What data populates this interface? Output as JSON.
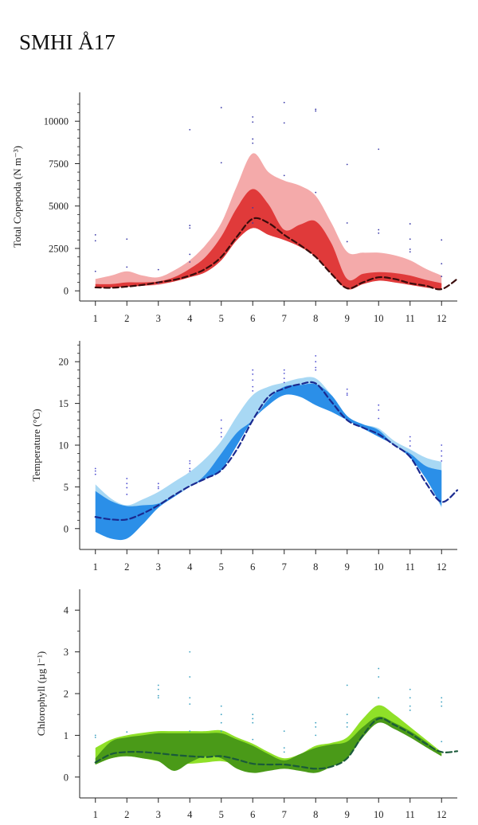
{
  "title": "SMHI Å17",
  "chart_data": [
    {
      "type": "area",
      "id": "copepoda",
      "ylabel": "Total Copepoda (N m⁻³)",
      "xlim": [
        0.5,
        12.5
      ],
      "ylim": [
        -600,
        11700
      ],
      "yticks": [
        0,
        2500,
        5000,
        7500,
        10000
      ],
      "yminor": [
        500,
        1000,
        1500,
        2000,
        3000,
        3500,
        4000,
        4500,
        5500,
        6000,
        6500,
        7000,
        8000,
        8500,
        9000,
        9500,
        10500,
        11000
      ],
      "xticks": [
        1,
        2,
        3,
        4,
        5,
        6,
        7,
        8,
        9,
        10,
        11,
        12
      ],
      "colors": {
        "outer": "#f4aaaa",
        "inner": "#e03a3a",
        "line": "#3a0c0c",
        "dots": "#3a3aa8"
      },
      "x": [
        1,
        1.5,
        2,
        2.5,
        3,
        3.5,
        4,
        4.5,
        5,
        5.5,
        6,
        6.5,
        7,
        7.5,
        8,
        8.5,
        9,
        9.5,
        10,
        10.5,
        11,
        11.5,
        12
      ],
      "outer_upper": [
        700,
        900,
        1150,
        900,
        800,
        1200,
        1800,
        2700,
        4000,
        6200,
        8100,
        7000,
        6500,
        6200,
        5600,
        4000,
        2300,
        2250,
        2250,
        2100,
        1800,
        1300,
        900
      ],
      "outer_lower": [
        150,
        200,
        250,
        300,
        350,
        550,
        800,
        1100,
        1800,
        3000,
        3700,
        3300,
        3000,
        2600,
        2000,
        1000,
        100,
        400,
        600,
        500,
        350,
        200,
        100
      ],
      "inner_upper": [
        400,
        400,
        500,
        500,
        550,
        800,
        1300,
        2000,
        3200,
        4900,
        6000,
        5100,
        3600,
        3900,
        4100,
        2800,
        700,
        1000,
        1100,
        1050,
        900,
        650,
        450
      ],
      "inner_lower": [
        200,
        200,
        250,
        300,
        400,
        550,
        800,
        1100,
        1800,
        3000,
        3700,
        3300,
        3000,
        2600,
        2000,
        1000,
        100,
        400,
        600,
        500,
        350,
        200,
        100
      ],
      "median_x": [
        1,
        1.5,
        2,
        2.5,
        3,
        3.5,
        4,
        4.5,
        5,
        5.5,
        6,
        6.5,
        7,
        7.5,
        8,
        8.5,
        9,
        9.5,
        10,
        10.5,
        11,
        11.5,
        12,
        12.5
      ],
      "median_y": [
        200,
        180,
        250,
        350,
        500,
        650,
        900,
        1300,
        2000,
        3200,
        4250,
        4000,
        3300,
        2700,
        2000,
        1000,
        150,
        500,
        800,
        700,
        450,
        300,
        100,
        700
      ],
      "obs": [
        [
          1,
          3300
        ],
        [
          1,
          2950
        ],
        [
          1,
          1150
        ],
        [
          2,
          3050
        ],
        [
          2,
          1400
        ],
        [
          3,
          1250
        ],
        [
          3,
          450
        ],
        [
          4,
          9500
        ],
        [
          4,
          3850
        ],
        [
          4,
          3700
        ],
        [
          4,
          2150
        ],
        [
          4,
          1700
        ],
        [
          5,
          10800
        ],
        [
          5,
          7550
        ],
        [
          6,
          10250
        ],
        [
          6,
          9950
        ],
        [
          6,
          8950
        ],
        [
          6,
          8700
        ],
        [
          6,
          4900
        ],
        [
          6,
          4000
        ],
        [
          7,
          11100
        ],
        [
          7,
          9900
        ],
        [
          7,
          6800
        ],
        [
          8,
          10700
        ],
        [
          8,
          10600
        ],
        [
          8,
          5800
        ],
        [
          9,
          7450
        ],
        [
          9,
          4000
        ],
        [
          9,
          2900
        ],
        [
          10,
          8350
        ],
        [
          10,
          3600
        ],
        [
          10,
          3400
        ],
        [
          11,
          3950
        ],
        [
          11,
          3050
        ],
        [
          11,
          2450
        ],
        [
          11,
          2300
        ],
        [
          12,
          3000
        ],
        [
          12,
          1600
        ],
        [
          12,
          850
        ]
      ]
    },
    {
      "type": "area",
      "id": "temperature",
      "ylabel": "Temperature (°C)",
      "xlim": [
        0.5,
        12.5
      ],
      "ylim": [
        -2.5,
        22.5
      ],
      "yticks": [
        0,
        5,
        10,
        15,
        20
      ],
      "yminor": [
        1,
        2,
        3,
        4,
        6,
        7,
        8,
        9,
        11,
        12,
        13,
        14,
        16,
        17,
        18,
        19,
        21,
        22
      ],
      "xticks": [
        1,
        2,
        3,
        4,
        5,
        6,
        7,
        8,
        9,
        10,
        11,
        12
      ],
      "colors": {
        "outer": "#a8d8f4",
        "inner": "#2b8fe8",
        "line": "#1a2a90",
        "dots": "#4f4fd0"
      },
      "x": [
        1,
        1.5,
        2,
        2.5,
        3,
        3.5,
        4,
        4.5,
        5,
        5.5,
        6,
        6.5,
        7,
        7.5,
        8,
        8.5,
        9,
        9.5,
        10,
        10.5,
        11,
        11.5,
        12
      ],
      "outer_upper": [
        5.3,
        3.6,
        2.8,
        3.5,
        4.4,
        5.6,
        6.8,
        8.4,
        10.5,
        13.5,
        16.0,
        17.0,
        17.5,
        18.0,
        18.0,
        16.0,
        13.5,
        12.5,
        12.0,
        10.5,
        9.5,
        8.5,
        8.0
      ],
      "outer_lower": [
        1.5,
        1.0,
        1.0,
        2.0,
        2.7,
        3.8,
        5.0,
        6.0,
        7.0,
        10.0,
        13.0,
        14.8,
        16.2,
        15.8,
        14.8,
        14.0,
        13.0,
        12.0,
        11.0,
        10.0,
        8.5,
        6.0,
        2.5
      ],
      "inner_upper": [
        4.5,
        3.3,
        2.7,
        2.8,
        3.0,
        4.0,
        5.0,
        6.5,
        9.0,
        11.5,
        13.0,
        15.5,
        17.0,
        17.2,
        17.3,
        16.0,
        13.5,
        12.5,
        11.8,
        10.0,
        9.0,
        7.5,
        7.0
      ],
      "inner_lower": [
        -0.4,
        -1.2,
        -1.2,
        0.5,
        2.5,
        3.8,
        5.0,
        6.0,
        7.0,
        10.0,
        13.0,
        14.8,
        16.0,
        15.8,
        14.8,
        14.0,
        13.0,
        12.0,
        11.0,
        10.0,
        8.5,
        6.0,
        2.7
      ],
      "median_x": [
        1,
        1.5,
        2,
        2.5,
        3,
        3.5,
        4,
        4.5,
        5,
        5.5,
        6,
        6.5,
        7,
        7.5,
        8,
        8.5,
        9,
        9.5,
        10,
        10.5,
        11,
        11.5,
        12,
        12.5
      ],
      "median_y": [
        1.4,
        1.1,
        1.1,
        1.8,
        2.8,
        4.0,
        5.1,
        6.0,
        7.0,
        9.5,
        13.0,
        15.8,
        16.8,
        17.3,
        17.4,
        15.2,
        13.0,
        12.1,
        11.3,
        10.0,
        8.6,
        5.5,
        3.2,
        4.6
      ],
      "obs": [
        [
          1,
          7.2
        ],
        [
          1,
          6.9
        ],
        [
          1,
          6.5
        ],
        [
          2,
          6.0
        ],
        [
          2,
          5.4
        ],
        [
          2,
          4.9
        ],
        [
          2,
          4.1
        ],
        [
          3,
          5.4
        ],
        [
          3,
          5.0
        ],
        [
          3,
          4.8
        ],
        [
          4,
          8.1
        ],
        [
          4,
          7.8
        ],
        [
          4,
          7.2
        ],
        [
          4,
          6.9
        ],
        [
          5,
          13.0
        ],
        [
          5,
          12.0
        ],
        [
          5,
          11.5
        ],
        [
          5,
          11.0
        ],
        [
          6,
          19.0
        ],
        [
          6,
          18.5
        ],
        [
          6,
          17.8
        ],
        [
          6,
          17.0
        ],
        [
          6,
          16.5
        ],
        [
          7,
          19.0
        ],
        [
          7,
          18.6
        ],
        [
          7,
          18.0
        ],
        [
          7,
          17.5
        ],
        [
          8,
          20.7
        ],
        [
          8,
          20.0
        ],
        [
          8,
          19.3
        ],
        [
          8,
          19.0
        ],
        [
          9,
          16.7
        ],
        [
          9,
          16.2
        ],
        [
          9,
          16.0
        ],
        [
          10,
          14.8
        ],
        [
          10,
          14.2
        ],
        [
          10,
          13.2
        ],
        [
          11,
          11.0
        ],
        [
          11,
          10.5
        ],
        [
          11,
          9.9
        ],
        [
          12,
          10.0
        ],
        [
          12,
          9.3
        ],
        [
          12,
          8.7
        ],
        [
          12,
          8.1
        ]
      ]
    },
    {
      "type": "area",
      "id": "chlorophyll",
      "ylabel": "Chlorophyll (µg l⁻¹)",
      "xlim": [
        0.5,
        12.5
      ],
      "ylim": [
        -0.5,
        4.5
      ],
      "yticks": [
        0,
        1,
        2,
        3,
        4
      ],
      "yminor": [
        0.5,
        1.5,
        2.5,
        3.5
      ],
      "xticks": [
        1,
        2,
        3,
        4,
        5,
        6,
        7,
        8,
        9,
        10,
        11,
        12
      ],
      "colors": {
        "outer": "#8fe028",
        "inner": "#4a9a18",
        "line": "#1a5a3a",
        "dots": "#3aa0c0"
      },
      "x": [
        1,
        1.5,
        2,
        2.5,
        3,
        3.5,
        4,
        4.5,
        5,
        5.5,
        6,
        6.5,
        7,
        7.5,
        8,
        8.5,
        9,
        9.5,
        10,
        10.5,
        11,
        11.5,
        12
      ],
      "outer_upper": [
        0.7,
        0.9,
        1.0,
        1.06,
        1.1,
        1.1,
        1.1,
        1.1,
        1.12,
        0.95,
        0.8,
        0.6,
        0.45,
        0.55,
        0.75,
        0.82,
        0.95,
        1.4,
        1.72,
        1.5,
        1.2,
        0.9,
        0.6
      ],
      "outer_lower": [
        0.3,
        0.45,
        0.5,
        0.45,
        0.38,
        0.32,
        0.32,
        0.35,
        0.38,
        0.3,
        0.2,
        0.25,
        0.28,
        0.2,
        0.18,
        0.3,
        0.48,
        1.0,
        1.38,
        1.2,
        1.0,
        0.75,
        0.52
      ],
      "inner_upper": [
        0.45,
        0.85,
        0.95,
        1.0,
        1.05,
        1.05,
        1.05,
        1.05,
        1.05,
        0.9,
        0.75,
        0.55,
        0.4,
        0.55,
        0.7,
        0.78,
        0.85,
        1.2,
        1.45,
        1.3,
        1.1,
        0.85,
        0.55
      ],
      "inner_lower": [
        0.3,
        0.45,
        0.5,
        0.45,
        0.38,
        0.15,
        0.35,
        0.5,
        0.45,
        0.2,
        0.1,
        0.15,
        0.2,
        0.15,
        0.1,
        0.25,
        0.45,
        0.95,
        1.3,
        1.15,
        0.95,
        0.72,
        0.5
      ],
      "median_x": [
        1,
        1.5,
        2,
        2.5,
        3,
        3.5,
        4,
        4.5,
        5,
        5.5,
        6,
        6.5,
        7,
        7.5,
        8,
        8.5,
        9,
        9.5,
        10,
        10.5,
        11,
        11.5,
        12,
        12.5
      ],
      "median_y": [
        0.35,
        0.55,
        0.6,
        0.6,
        0.57,
        0.53,
        0.5,
        0.48,
        0.5,
        0.42,
        0.32,
        0.3,
        0.3,
        0.25,
        0.2,
        0.25,
        0.45,
        1.0,
        1.4,
        1.25,
        1.05,
        0.8,
        0.6,
        0.62
      ],
      "obs": [
        [
          1,
          1.0
        ],
        [
          1,
          0.95
        ],
        [
          2,
          1.08
        ],
        [
          3,
          2.2
        ],
        [
          3,
          2.1
        ],
        [
          3,
          1.95
        ],
        [
          3,
          1.9
        ],
        [
          4,
          3.0
        ],
        [
          4,
          2.4
        ],
        [
          4,
          1.9
        ],
        [
          4,
          1.75
        ],
        [
          4,
          1.1
        ],
        [
          5,
          1.7
        ],
        [
          5,
          1.5
        ],
        [
          5,
          1.3
        ],
        [
          5,
          1.1
        ],
        [
          6,
          1.5
        ],
        [
          6,
          1.4
        ],
        [
          6,
          1.3
        ],
        [
          6,
          0.9
        ],
        [
          7,
          1.1
        ],
        [
          7,
          0.7
        ],
        [
          7,
          0.6
        ],
        [
          8,
          1.3
        ],
        [
          8,
          1.2
        ],
        [
          8,
          1.0
        ],
        [
          9,
          2.2
        ],
        [
          9,
          1.5
        ],
        [
          9,
          1.3
        ],
        [
          9,
          1.2
        ],
        [
          10,
          2.6
        ],
        [
          10,
          2.4
        ],
        [
          10,
          1.9
        ],
        [
          11,
          2.1
        ],
        [
          11,
          1.9
        ],
        [
          11,
          1.7
        ],
        [
          11,
          1.6
        ],
        [
          12,
          1.9
        ],
        [
          12,
          1.8
        ],
        [
          12,
          1.7
        ],
        [
          12,
          0.85
        ]
      ]
    }
  ]
}
